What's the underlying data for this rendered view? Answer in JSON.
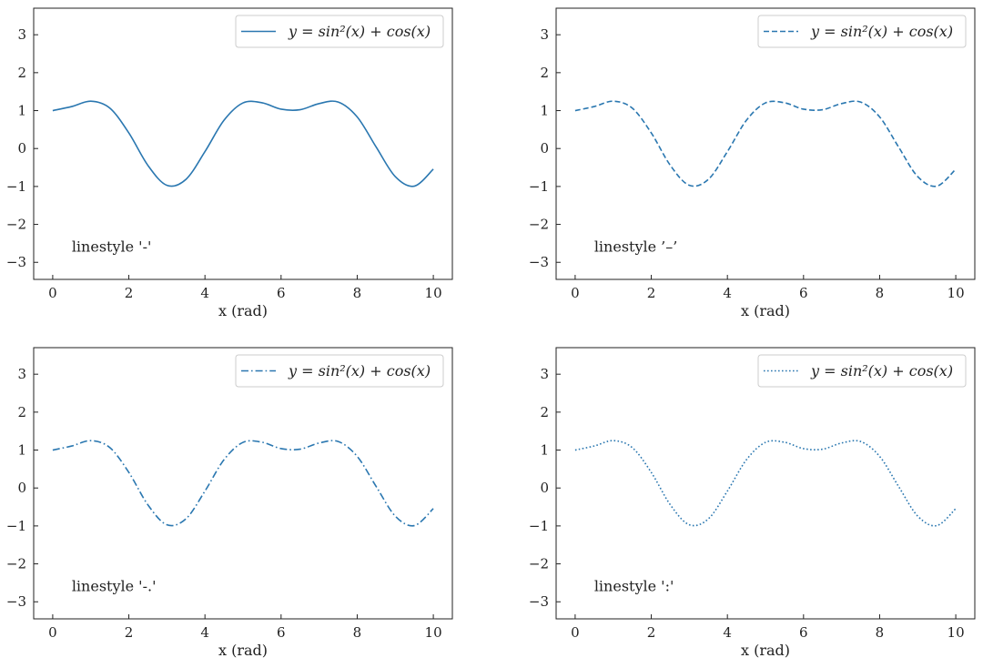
{
  "chart_data": [
    {
      "type": "line",
      "legend": "y = sin²(x) + cos(x)",
      "legend_placement": "top-right",
      "annotation": "linestyle '-'",
      "linestyle": "solid",
      "xlabel": "x (rad)",
      "ylabel": "",
      "xlim": [
        -0.5,
        10.5
      ],
      "ylim": [
        -3.45,
        3.7
      ],
      "xticks": [
        0,
        2,
        4,
        6,
        8,
        10
      ],
      "yticks": [
        -3,
        -2,
        -1,
        0,
        1,
        2,
        3
      ],
      "grid": false,
      "color": "#2a77b0"
    },
    {
      "type": "line",
      "legend": "y = sin²(x) + cos(x)",
      "legend_placement": "top-right",
      "annotation": "linestyle ’–’",
      "linestyle": "dashed",
      "xlabel": "x (rad)",
      "ylabel": "",
      "xlim": [
        -0.5,
        10.5
      ],
      "ylim": [
        -3.45,
        3.7
      ],
      "xticks": [
        0,
        2,
        4,
        6,
        8,
        10
      ],
      "yticks": [
        -3,
        -2,
        -1,
        0,
        1,
        2,
        3
      ],
      "grid": false,
      "color": "#2a77b0"
    },
    {
      "type": "line",
      "legend": "y = sin²(x) + cos(x)",
      "legend_placement": "top-right",
      "annotation": "linestyle '-.'",
      "linestyle": "dashdot",
      "xlabel": "x (rad)",
      "ylabel": "",
      "xlim": [
        -0.5,
        10.5
      ],
      "ylim": [
        -3.45,
        3.7
      ],
      "xticks": [
        0,
        2,
        4,
        6,
        8,
        10
      ],
      "yticks": [
        -3,
        -2,
        -1,
        0,
        1,
        2,
        3
      ],
      "grid": false,
      "color": "#2a77b0"
    },
    {
      "type": "line",
      "legend": "y = sin²(x) + cos(x)",
      "legend_placement": "top-right",
      "annotation": "linestyle ':'",
      "linestyle": "dotted",
      "xlabel": "x (rad)",
      "ylabel": "",
      "xlim": [
        -0.5,
        10.5
      ],
      "ylim": [
        -3.45,
        3.7
      ],
      "xticks": [
        0,
        2,
        4,
        6,
        8,
        10
      ],
      "yticks": [
        -3,
        -2,
        -1,
        0,
        1,
        2,
        3
      ],
      "grid": false,
      "color": "#2a77b0"
    }
  ],
  "series_data": {
    "x": [
      0,
      0.5,
      1,
      1.5,
      2,
      2.5,
      3,
      3.5,
      4,
      4.5,
      5,
      5.5,
      6,
      6.5,
      7,
      7.5,
      8,
      8.5,
      9,
      9.5,
      10
    ],
    "y": [
      1.0,
      1.107,
      1.248,
      1.066,
      0.411,
      -0.443,
      -0.97,
      -0.813,
      -0.081,
      0.745,
      1.203,
      1.206,
      1.038,
      1.023,
      1.186,
      1.226,
      0.833,
      0.036,
      -0.741,
      -0.992,
      -0.543
    ]
  }
}
